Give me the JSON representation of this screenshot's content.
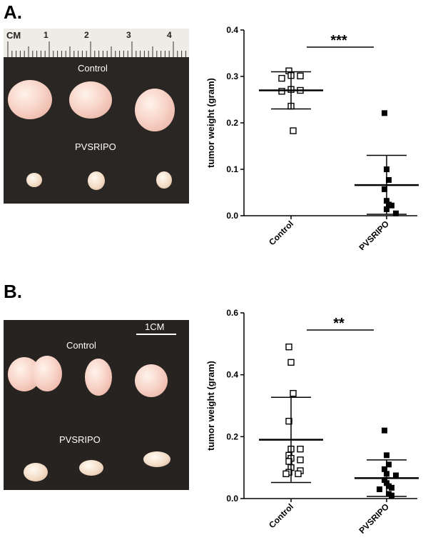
{
  "panels": [
    {
      "label": "A.",
      "photo": {
        "control_label": "Control",
        "treated_label": "PVSRIPO",
        "ruler": {
          "cm_label": "CM",
          "marks": [
            "1",
            "2",
            "3",
            "4"
          ]
        }
      },
      "chart_data": {
        "type": "scatter",
        "ylabel": "tumor weight (gram)",
        "categories": [
          "Control",
          "PVSRIPO"
        ],
        "ylim": [
          0,
          0.4
        ],
        "yticks": [
          "0.0",
          "0.1",
          "0.2",
          "0.3",
          "0.4"
        ],
        "significance": "***",
        "series": [
          {
            "marker": "open-square",
            "values": [
              0.312,
              0.302,
              0.301,
              0.296,
              0.272,
              0.27,
              0.268,
              0.236,
              0.183
            ],
            "mean": 0.27,
            "err_low": 0.23,
            "err_high": 0.31
          },
          {
            "marker": "filled-square",
            "values": [
              0.221,
              0.1,
              0.077,
              0.057,
              0.032,
              0.024,
              0.022,
              0.014,
              0.005
            ],
            "mean": 0.066,
            "err_low": 0.003,
            "err_high": 0.13
          }
        ]
      }
    },
    {
      "label": "B.",
      "photo": {
        "control_label": "Control",
        "treated_label": "PVSRIPO",
        "scale_label": "1CM"
      },
      "chart_data": {
        "type": "scatter",
        "ylabel": "tumor weight (gram)",
        "categories": [
          "Control",
          "PVSRIPO"
        ],
        "ylim": [
          0,
          0.6
        ],
        "yticks": [
          "0.0",
          "0.2",
          "0.4",
          "0.6"
        ],
        "significance": "**",
        "series": [
          {
            "marker": "open-square",
            "values": [
              0.49,
              0.44,
              0.34,
              0.25,
              0.16,
              0.16,
              0.14,
              0.13,
              0.125,
              0.12,
              0.1,
              0.09,
              0.085,
              0.08,
              0.08
            ],
            "mean": 0.19,
            "err_low": 0.052,
            "err_high": 0.327
          },
          {
            "marker": "filled-square",
            "values": [
              0.22,
              0.14,
              0.11,
              0.095,
              0.08,
              0.075,
              0.06,
              0.05,
              0.04,
              0.035,
              0.03,
              0.015,
              0.01
            ],
            "mean": 0.066,
            "err_low": 0.007,
            "err_high": 0.125
          }
        ]
      }
    }
  ]
}
